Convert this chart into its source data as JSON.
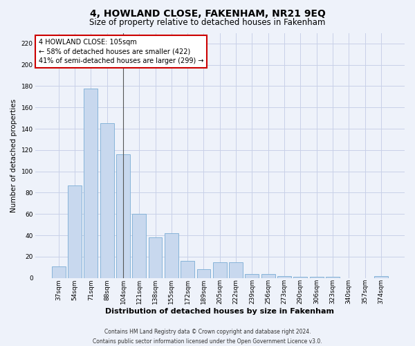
{
  "title": "4, HOWLAND CLOSE, FAKENHAM, NR21 9EQ",
  "subtitle": "Size of property relative to detached houses in Fakenham",
  "xlabel": "Distribution of detached houses by size in Fakenham",
  "ylabel": "Number of detached properties",
  "categories": [
    "37sqm",
    "54sqm",
    "71sqm",
    "88sqm",
    "104sqm",
    "121sqm",
    "138sqm",
    "155sqm",
    "172sqm",
    "189sqm",
    "205sqm",
    "222sqm",
    "239sqm",
    "256sqm",
    "273sqm",
    "290sqm",
    "306sqm",
    "323sqm",
    "340sqm",
    "357sqm",
    "374sqm"
  ],
  "values": [
    11,
    87,
    178,
    145,
    116,
    60,
    38,
    42,
    16,
    8,
    15,
    15,
    4,
    4,
    2,
    1,
    1,
    1,
    0,
    0,
    2
  ],
  "bar_color": "#c8d8ee",
  "bar_edge_color": "#7aadd4",
  "highlight_bar_index": 4,
  "highlight_line_color": "#555555",
  "annotation_text": "4 HOWLAND CLOSE: 105sqm\n← 58% of detached houses are smaller (422)\n41% of semi-detached houses are larger (299) →",
  "annotation_box_color": "#ffffff",
  "annotation_box_edge_color": "#cc0000",
  "ylim": [
    0,
    230
  ],
  "yticks": [
    0,
    20,
    40,
    60,
    80,
    100,
    120,
    140,
    160,
    180,
    200,
    220
  ],
  "grid_color": "#c8d0e8",
  "footer_line1": "Contains HM Land Registry data © Crown copyright and database right 2024.",
  "footer_line2": "Contains public sector information licensed under the Open Government Licence v3.0.",
  "bg_color": "#eef2fa",
  "title_fontsize": 10,
  "subtitle_fontsize": 8.5,
  "xlabel_fontsize": 8,
  "ylabel_fontsize": 7.5,
  "tick_fontsize": 6.5,
  "annotation_fontsize": 7,
  "footer_fontsize": 5.5
}
